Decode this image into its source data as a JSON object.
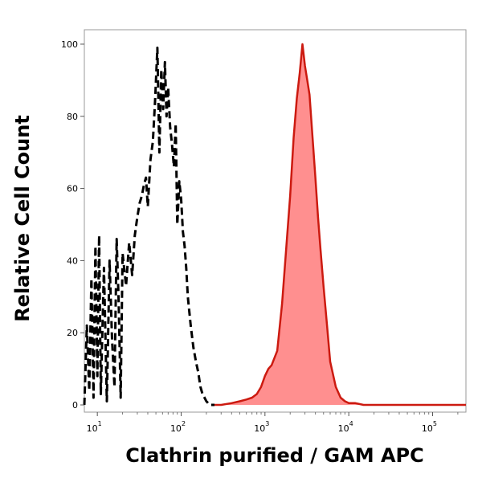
{
  "chart_data": {
    "type": "area",
    "title": "",
    "xlabel": "Clathrin purified / GAM APC",
    "ylabel": "Relative Cell Count",
    "x_scale": "log",
    "xlim": [
      7,
      250000
    ],
    "ylim": [
      -2,
      104
    ],
    "grid": false,
    "legend": "none",
    "y_ticks": [
      0,
      20,
      40,
      60,
      80,
      100
    ],
    "y_tick_labels": [
      "0",
      "20",
      "40",
      "60",
      "80",
      "100"
    ],
    "x_ticks": [
      {
        "base": "10",
        "exp": "1",
        "value": 10
      },
      {
        "base": "10",
        "exp": "2",
        "value": 100
      },
      {
        "base": "10",
        "exp": "3",
        "value": 1000
      },
      {
        "base": "10",
        "exp": "4",
        "value": 10000
      },
      {
        "base": "10",
        "exp": "5",
        "value": 100000
      }
    ],
    "series": [
      {
        "style": "dashed",
        "color": "#000000",
        "fill": "none",
        "x": [
          7,
          7.5,
          8,
          8.5,
          9,
          9.5,
          10,
          10.5,
          11,
          12,
          13,
          14,
          15,
          16,
          17,
          18,
          19,
          20,
          22,
          24,
          26,
          28,
          30,
          32,
          34,
          36,
          38,
          40,
          43,
          46,
          49,
          52,
          55,
          58,
          61,
          64,
          67,
          70,
          74,
          78,
          82,
          86,
          90,
          95,
          100,
          105,
          110,
          115,
          120,
          125,
          130,
          140,
          150,
          160,
          170,
          180,
          190,
          200,
          220,
          250
        ],
        "y": [
          0,
          22,
          4,
          35,
          2,
          44,
          8,
          47,
          3,
          38,
          1,
          40,
          18,
          5,
          46,
          28,
          2,
          42,
          33,
          45,
          36,
          47,
          52,
          56,
          58,
          61,
          63,
          55,
          68,
          73,
          85,
          99,
          70,
          93,
          82,
          95,
          80,
          88,
          77,
          72,
          66,
          78,
          50,
          62,
          57,
          48,
          44,
          38,
          30,
          26,
          22,
          16,
          12,
          9,
          5,
          3,
          2,
          1,
          0,
          0
        ]
      },
      {
        "style": "solid",
        "color": "#cc1a10",
        "fill": "#ff8f8f",
        "x": [
          250,
          300,
          400,
          500,
          600,
          700,
          800,
          900,
          1000,
          1100,
          1200,
          1400,
          1600,
          1800,
          2000,
          2200,
          2400,
          2600,
          2800,
          3000,
          3200,
          3400,
          3700,
          4000,
          4300,
          4600,
          5000,
          5500,
          6000,
          7000,
          8000,
          9000,
          10000,
          12000,
          15000,
          20000,
          50000,
          100000,
          250000
        ],
        "y": [
          0,
          0,
          0.5,
          1,
          1.5,
          2,
          3,
          5,
          8,
          10,
          11,
          15,
          28,
          44,
          58,
          74,
          85,
          92,
          100,
          94,
          90,
          86,
          74,
          63,
          52,
          43,
          33,
          22,
          12,
          5,
          2,
          1,
          0.5,
          0.5,
          0,
          0,
          0,
          0,
          0
        ]
      }
    ]
  }
}
